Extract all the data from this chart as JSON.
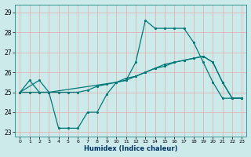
{
  "xlabel": "Humidex (Indice chaleur)",
  "bg_color": "#cceaea",
  "grid_color": "#e8a8a8",
  "line_color": "#007878",
  "xlim": [
    -0.5,
    23.5
  ],
  "ylim": [
    22.8,
    29.4
  ],
  "xticks": [
    0,
    1,
    2,
    3,
    4,
    5,
    6,
    7,
    8,
    9,
    10,
    11,
    12,
    13,
    14,
    15,
    16,
    17,
    18,
    19,
    20,
    21,
    22,
    23
  ],
  "yticks": [
    23,
    24,
    25,
    26,
    27,
    28,
    29
  ],
  "line1_x": [
    0,
    1,
    2,
    3,
    4,
    5,
    6,
    7,
    8,
    9,
    10,
    11,
    12,
    13,
    14,
    15,
    16,
    17,
    18,
    19,
    20,
    21,
    22,
    23
  ],
  "line1_y": [
    25.0,
    25.6,
    25.0,
    25.0,
    23.2,
    23.2,
    23.2,
    24.0,
    24.0,
    24.9,
    25.5,
    25.6,
    26.5,
    28.6,
    28.2,
    28.2,
    28.2,
    28.2,
    27.5,
    26.5,
    25.5,
    24.7,
    24.7,
    24.7
  ],
  "line2_x": [
    0,
    2,
    3,
    10,
    11,
    12,
    13,
    14,
    15,
    16,
    17,
    18,
    19,
    20,
    21,
    22,
    23
  ],
  "line2_y": [
    25.0,
    25.6,
    25.0,
    25.5,
    25.6,
    25.8,
    26.0,
    26.2,
    26.3,
    26.5,
    26.6,
    26.7,
    26.8,
    26.5,
    25.5,
    24.7,
    24.7
  ],
  "line3_x": [
    0,
    1,
    2,
    3,
    4,
    5,
    6,
    7,
    8,
    9,
    10,
    11,
    12,
    13,
    14,
    15,
    16,
    17,
    18,
    19,
    20,
    21,
    22,
    23
  ],
  "line3_y": [
    25.0,
    25.0,
    25.0,
    25.0,
    25.0,
    25.0,
    25.0,
    25.1,
    25.3,
    25.4,
    25.5,
    25.7,
    25.8,
    26.0,
    26.2,
    26.4,
    26.5,
    26.6,
    26.7,
    26.8,
    26.5,
    25.5,
    24.7,
    24.7
  ]
}
